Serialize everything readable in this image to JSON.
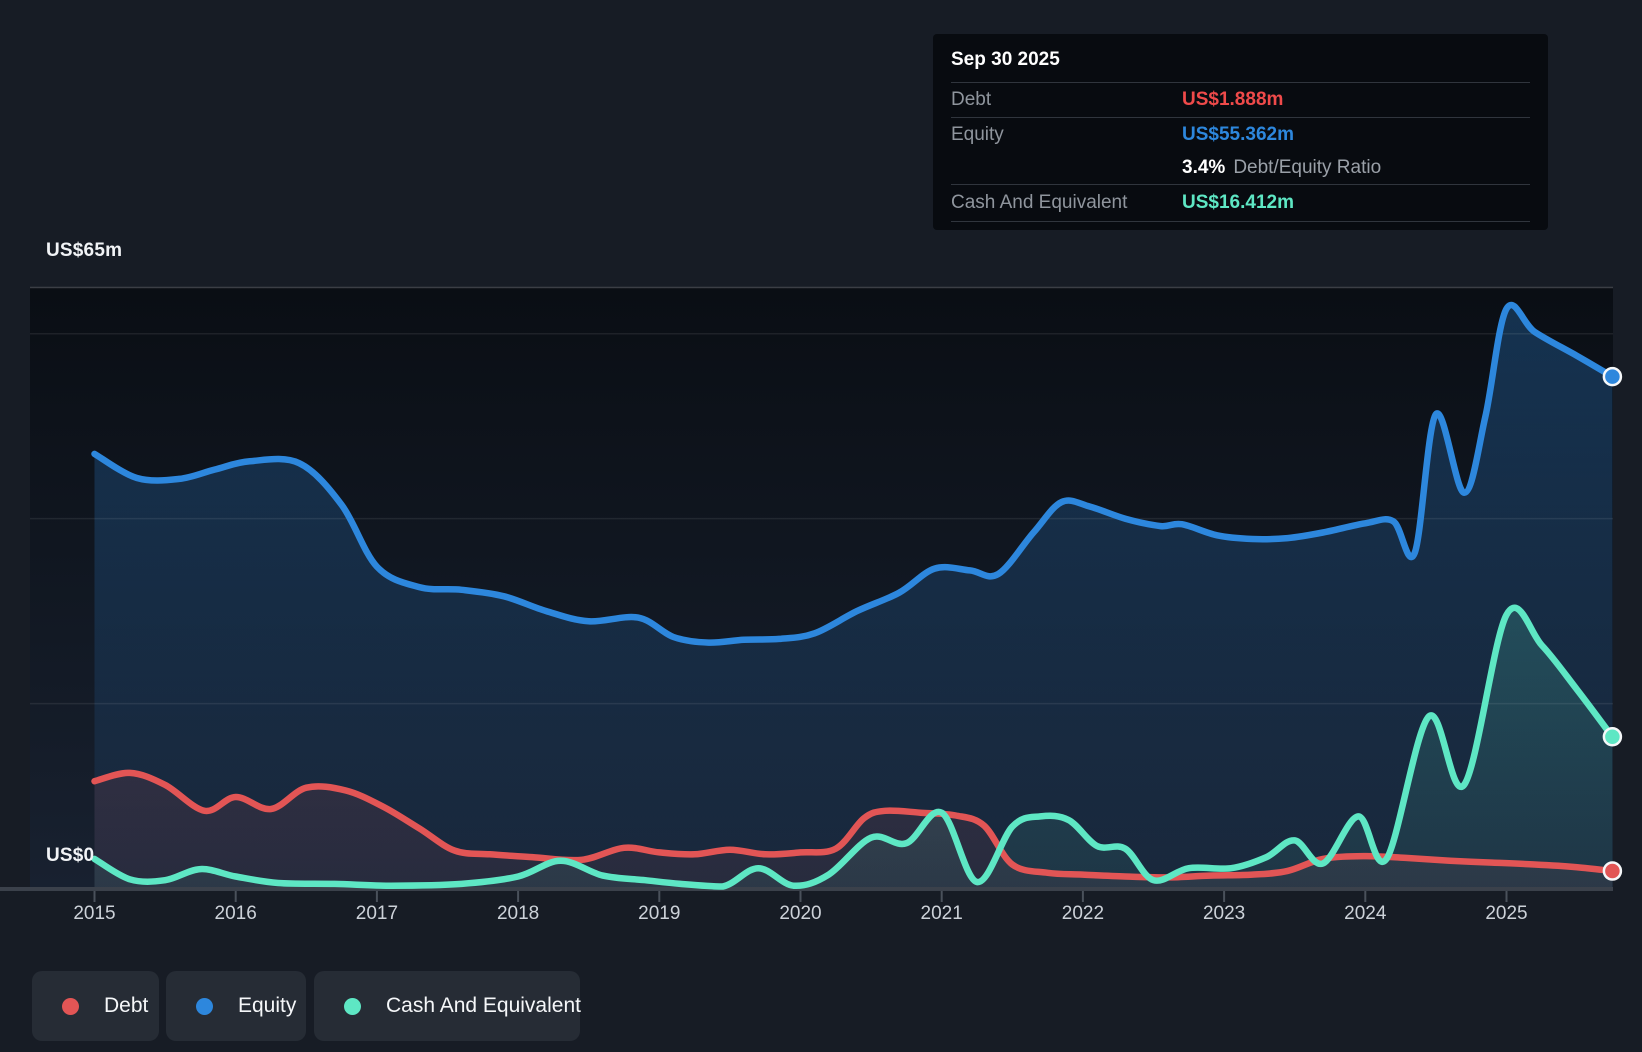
{
  "y_axis": {
    "top_label": "US$65m",
    "bottom_label": "US$0"
  },
  "x_axis": {
    "years": [
      "2015",
      "2016",
      "2017",
      "2018",
      "2019",
      "2020",
      "2021",
      "2022",
      "2023",
      "2024",
      "2025"
    ]
  },
  "tooltip": {
    "date": "Sep 30 2025",
    "debt_label": "Debt",
    "debt_value": "US$1.888m",
    "equity_label": "Equity",
    "equity_value": "US$55.362m",
    "ratio_value": "3.4%",
    "ratio_label": "Debt/Equity Ratio",
    "cash_label": "Cash And Equivalent",
    "cash_value": "US$16.412m"
  },
  "legend": {
    "debt_label": "Debt",
    "equity_label": "Equity",
    "cash_label": "Cash And Equivalent"
  },
  "colors": {
    "debt": "#e25555",
    "debt_value_text": "#ef4a4a",
    "equity": "#2d87dd",
    "cash": "#5ee7c4",
    "grid_minor": "rgba(255,255,255,0.08)",
    "grid_major": "rgba(255,255,255,0.18)",
    "axis_line": "#3b414b",
    "tick": "#4a515b",
    "plot_bg_top": "#0a0e14",
    "plot_bg_bottom": "#182130",
    "marker_stroke": "#f5f7f9"
  },
  "chart_data": {
    "type": "area",
    "title": "Debt to Equity History",
    "xlabel": "",
    "ylabel": "",
    "x_range": [
      2015.0,
      2025.75
    ],
    "ylim": [
      0,
      65
    ],
    "y_unit": "US$ millions",
    "y_gridlines": [
      20,
      40,
      60
    ],
    "y_top_gridline": 65,
    "legend_position": "bottom-left",
    "series": [
      {
        "name": "Debt",
        "color": "#e25555",
        "points": [
          [
            2015.0,
            11.6
          ],
          [
            2015.25,
            12.5
          ],
          [
            2015.5,
            11.2
          ],
          [
            2015.78,
            8.4
          ],
          [
            2016.0,
            9.9
          ],
          [
            2016.25,
            8.6
          ],
          [
            2016.5,
            10.9
          ],
          [
            2016.78,
            10.6
          ],
          [
            2017.05,
            8.8
          ],
          [
            2017.3,
            6.5
          ],
          [
            2017.55,
            4.1
          ],
          [
            2017.8,
            3.7
          ],
          [
            2018.1,
            3.4
          ],
          [
            2018.45,
            3.1
          ],
          [
            2018.75,
            4.4
          ],
          [
            2019.0,
            3.9
          ],
          [
            2019.25,
            3.7
          ],
          [
            2019.5,
            4.2
          ],
          [
            2019.75,
            3.7
          ],
          [
            2020.0,
            3.9
          ],
          [
            2020.25,
            4.3
          ],
          [
            2020.45,
            7.6
          ],
          [
            2020.6,
            8.4
          ],
          [
            2020.85,
            8.2
          ],
          [
            2021.1,
            7.9
          ],
          [
            2021.3,
            6.8
          ],
          [
            2021.5,
            2.6
          ],
          [
            2021.75,
            1.7
          ],
          [
            2022.0,
            1.5
          ],
          [
            2022.3,
            1.3
          ],
          [
            2022.6,
            1.2
          ],
          [
            2022.9,
            1.4
          ],
          [
            2023.2,
            1.5
          ],
          [
            2023.45,
            1.9
          ],
          [
            2023.7,
            3.2
          ],
          [
            2024.0,
            3.5
          ],
          [
            2024.3,
            3.3
          ],
          [
            2024.6,
            3.0
          ],
          [
            2024.9,
            2.8
          ],
          [
            2025.2,
            2.6
          ],
          [
            2025.5,
            2.3
          ],
          [
            2025.75,
            1.888
          ]
        ]
      },
      {
        "name": "Equity",
        "color": "#2d87dd",
        "points": [
          [
            2015.0,
            47.0
          ],
          [
            2015.3,
            44.4
          ],
          [
            2015.6,
            44.3
          ],
          [
            2015.85,
            45.3
          ],
          [
            2016.1,
            46.2
          ],
          [
            2016.45,
            46.0
          ],
          [
            2016.75,
            41.5
          ],
          [
            2017.0,
            34.8
          ],
          [
            2017.3,
            32.6
          ],
          [
            2017.6,
            32.3
          ],
          [
            2017.9,
            31.6
          ],
          [
            2018.2,
            30.0
          ],
          [
            2018.5,
            28.9
          ],
          [
            2018.85,
            29.3
          ],
          [
            2019.1,
            27.2
          ],
          [
            2019.35,
            26.6
          ],
          [
            2019.6,
            26.9
          ],
          [
            2019.85,
            27.0
          ],
          [
            2020.1,
            27.6
          ],
          [
            2020.4,
            30.0
          ],
          [
            2020.7,
            32.0
          ],
          [
            2020.95,
            34.6
          ],
          [
            2021.2,
            34.4
          ],
          [
            2021.4,
            34.0
          ],
          [
            2021.65,
            38.5
          ],
          [
            2021.85,
            41.8
          ],
          [
            2022.05,
            41.3
          ],
          [
            2022.3,
            40.0
          ],
          [
            2022.55,
            39.2
          ],
          [
            2022.7,
            39.4
          ],
          [
            2022.95,
            38.2
          ],
          [
            2023.2,
            37.8
          ],
          [
            2023.45,
            37.9
          ],
          [
            2023.7,
            38.5
          ],
          [
            2024.0,
            39.5
          ],
          [
            2024.2,
            39.7
          ],
          [
            2024.35,
            36.3
          ],
          [
            2024.5,
            51.3
          ],
          [
            2024.7,
            42.8
          ],
          [
            2024.85,
            51.0
          ],
          [
            2025.0,
            62.7
          ],
          [
            2025.2,
            60.2
          ],
          [
            2025.5,
            57.6
          ],
          [
            2025.75,
            55.362
          ]
        ]
      },
      {
        "name": "Cash And Equivalent",
        "color": "#5ee7c4",
        "points": [
          [
            2015.0,
            3.2
          ],
          [
            2015.25,
            1.0
          ],
          [
            2015.5,
            0.9
          ],
          [
            2015.75,
            2.1
          ],
          [
            2016.0,
            1.3
          ],
          [
            2016.3,
            0.6
          ],
          [
            2016.7,
            0.5
          ],
          [
            2017.1,
            0.3
          ],
          [
            2017.6,
            0.5
          ],
          [
            2018.0,
            1.3
          ],
          [
            2018.3,
            3.0
          ],
          [
            2018.6,
            1.4
          ],
          [
            2018.9,
            0.9
          ],
          [
            2019.15,
            0.5
          ],
          [
            2019.45,
            0.2
          ],
          [
            2019.7,
            2.2
          ],
          [
            2019.95,
            0.3
          ],
          [
            2020.2,
            1.5
          ],
          [
            2020.5,
            5.5
          ],
          [
            2020.75,
            4.9
          ],
          [
            2021.0,
            8.2
          ],
          [
            2021.25,
            0.7
          ],
          [
            2021.5,
            6.7
          ],
          [
            2021.7,
            7.8
          ],
          [
            2021.9,
            7.4
          ],
          [
            2022.1,
            4.6
          ],
          [
            2022.3,
            4.3
          ],
          [
            2022.5,
            0.9
          ],
          [
            2022.75,
            2.2
          ],
          [
            2023.05,
            2.2
          ],
          [
            2023.3,
            3.4
          ],
          [
            2023.5,
            5.2
          ],
          [
            2023.7,
            2.7
          ],
          [
            2023.95,
            7.8
          ],
          [
            2024.15,
            3.2
          ],
          [
            2024.45,
            18.6
          ],
          [
            2024.7,
            11.2
          ],
          [
            2025.0,
            29.6
          ],
          [
            2025.25,
            26.3
          ],
          [
            2025.5,
            21.5
          ],
          [
            2025.75,
            16.412
          ]
        ]
      }
    ]
  }
}
